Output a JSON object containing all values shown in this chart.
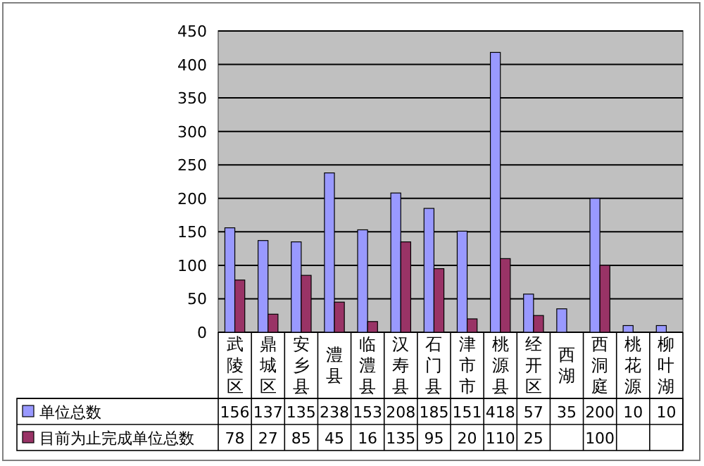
{
  "chart_data": {
    "type": "bar",
    "categories": [
      "武陵区",
      "鼎城区",
      "安乡县",
      "澧县",
      "临澧县",
      "汉寿县",
      "石门县",
      "津市市",
      "桃源县",
      "经开区",
      "西湖",
      "西洞庭",
      "桃花源",
      "柳叶湖"
    ],
    "series": [
      {
        "name": "单位总数",
        "color": "#9999ff",
        "values": [
          156,
          137,
          135,
          238,
          153,
          208,
          185,
          151,
          418,
          57,
          35,
          200,
          10,
          10
        ]
      },
      {
        "name": "目前为止完成单位总数",
        "color": "#993366",
        "values": [
          78,
          27,
          85,
          45,
          16,
          135,
          95,
          20,
          110,
          25,
          null,
          100,
          null,
          null
        ]
      }
    ],
    "ylim": [
      0,
      450
    ],
    "yticks": [
      0,
      50,
      100,
      150,
      200,
      250,
      300,
      350,
      400,
      450
    ],
    "grid": "y",
    "data_labels": true,
    "legend": "bottom"
  }
}
